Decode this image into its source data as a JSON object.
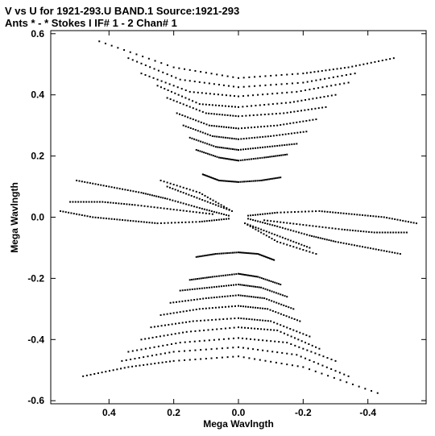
{
  "chart_data": {
    "type": "scatter",
    "title": "V vs U for 1921-293.U BAND.1   Source:1921-293",
    "subtitle": "Ants * - *      Stokes I   IF# 1 - 2   Chan# 1",
    "xlabel": "Mega Wavlngth",
    "ylabel": "Mega Wavlngth",
    "xlim": [
      0.58,
      -0.58
    ],
    "ylim": [
      -0.61,
      0.61
    ],
    "x_ticks": [
      0.4,
      0.2,
      0.0,
      -0.2,
      -0.4
    ],
    "x_tick_labels": [
      "0.4",
      "0.2",
      "0.0",
      "-0.2",
      "-0.4"
    ],
    "y_ticks": [
      0.6,
      0.4,
      0.2,
      0.0,
      -0.2,
      -0.4,
      -0.6
    ],
    "y_tick_labels": [
      "0.6",
      "0.4",
      "0.2",
      "0.0",
      "-0.2",
      "-0.4",
      "-0.6"
    ],
    "grid": false,
    "marker_color": "#000000",
    "description_pattern": "uv-coverage tracks, point-symmetric about origin",
    "tracks": [
      {
        "points": [
          [
            0.43,
            0.575
          ],
          [
            0.2,
            0.49
          ],
          [
            0.0,
            0.455
          ],
          [
            -0.2,
            0.47
          ],
          [
            -0.34,
            0.49
          ],
          [
            -0.48,
            0.52
          ]
        ]
      },
      {
        "points": [
          [
            0.34,
            0.52
          ],
          [
            0.18,
            0.45
          ],
          [
            0.0,
            0.425
          ],
          [
            -0.2,
            0.44
          ],
          [
            -0.36,
            0.47
          ]
        ]
      },
      {
        "points": [
          [
            0.3,
            0.47
          ],
          [
            0.15,
            0.41
          ],
          [
            0.0,
            0.395
          ],
          [
            -0.18,
            0.41
          ],
          [
            -0.34,
            0.44
          ]
        ]
      },
      {
        "points": [
          [
            0.25,
            0.43
          ],
          [
            0.12,
            0.37
          ],
          [
            0.0,
            0.36
          ],
          [
            -0.16,
            0.375
          ],
          [
            -0.3,
            0.4
          ]
        ]
      },
      {
        "points": [
          [
            0.22,
            0.39
          ],
          [
            0.1,
            0.34
          ],
          [
            0.0,
            0.33
          ],
          [
            -0.14,
            0.34
          ],
          [
            -0.27,
            0.36
          ]
        ]
      },
      {
        "points": [
          [
            0.19,
            0.34
          ],
          [
            0.09,
            0.3
          ],
          [
            0.0,
            0.29
          ],
          [
            -0.12,
            0.3
          ],
          [
            -0.24,
            0.32
          ]
        ]
      },
      {
        "points": [
          [
            0.17,
            0.3
          ],
          [
            0.08,
            0.265
          ],
          [
            0.0,
            0.255
          ],
          [
            -0.1,
            0.265
          ],
          [
            -0.21,
            0.28
          ]
        ]
      },
      {
        "points": [
          [
            0.15,
            0.26
          ],
          [
            0.07,
            0.23
          ],
          [
            0.0,
            0.22
          ],
          [
            -0.09,
            0.23
          ],
          [
            -0.18,
            0.24
          ]
        ]
      },
      {
        "points": [
          [
            0.13,
            0.22
          ],
          [
            0.06,
            0.195
          ],
          [
            0.0,
            0.185
          ],
          [
            -0.08,
            0.195
          ],
          [
            -0.15,
            0.205
          ]
        ]
      },
      {
        "points": [
          [
            0.24,
            0.12
          ],
          [
            0.12,
            0.08
          ],
          [
            0.02,
            0.02
          ],
          [
            0.12,
            0.06
          ],
          [
            0.22,
            0.1
          ]
        ]
      },
      {
        "points": [
          [
            0.5,
            0.12
          ],
          [
            0.4,
            0.1
          ],
          [
            0.3,
            0.08
          ],
          [
            0.22,
            0.06
          ],
          [
            0.12,
            0.03
          ],
          [
            0.03,
            0.005
          ]
        ]
      },
      {
        "points": [
          [
            0.52,
            0.05
          ],
          [
            0.42,
            0.05
          ],
          [
            0.32,
            0.04
          ],
          [
            0.2,
            0.025
          ],
          [
            0.08,
            0.01
          ]
        ]
      },
      {
        "points": [
          [
            0.55,
            0.02
          ],
          [
            0.45,
            0.0
          ],
          [
            0.35,
            -0.01
          ],
          [
            0.25,
            -0.02
          ],
          [
            0.12,
            -0.015
          ],
          [
            0.03,
            -0.005
          ]
        ]
      },
      {
        "points": [
          [
            0.11,
            0.14
          ],
          [
            0.06,
            0.12
          ],
          [
            0.0,
            0.115
          ],
          [
            -0.07,
            0.12
          ],
          [
            -0.13,
            0.13
          ]
        ]
      }
    ]
  }
}
